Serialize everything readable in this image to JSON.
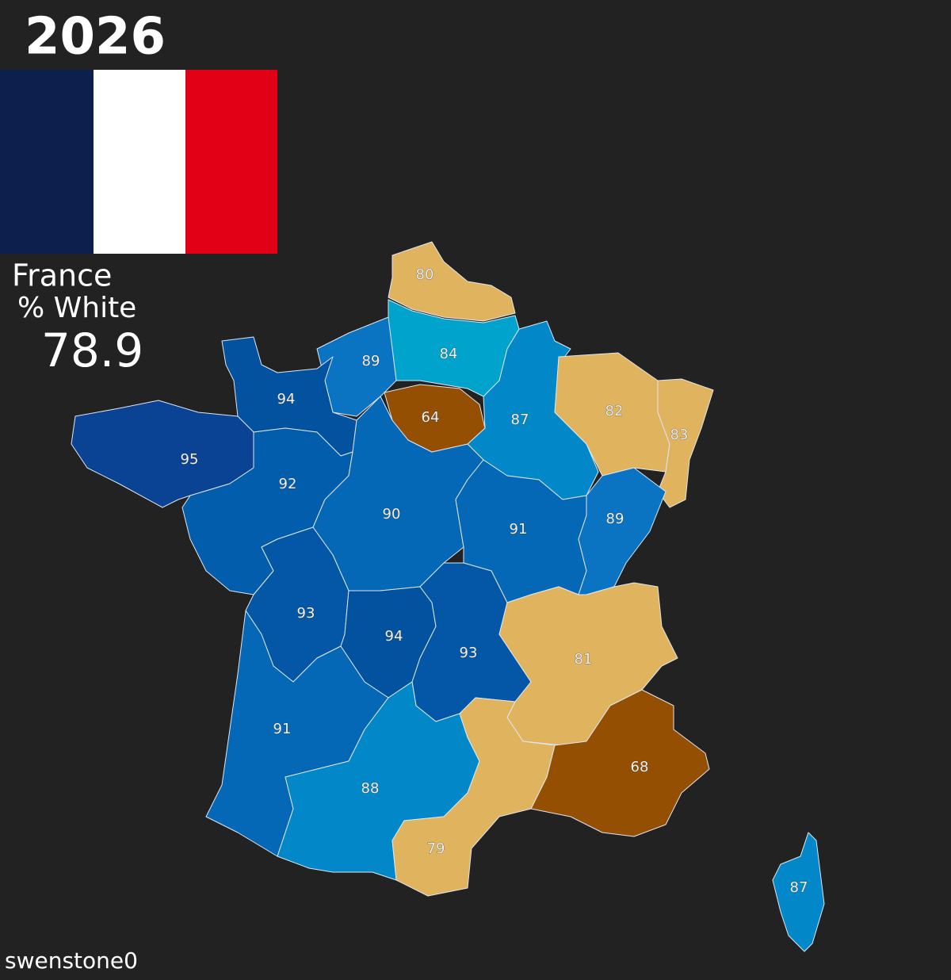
{
  "year": "2026",
  "country": "France",
  "metric": "% White",
  "national_value": 78.9,
  "credit": "swenstone0",
  "regions": [
    {
      "value": 80,
      "color": "#e0b45e"
    },
    {
      "value": 84,
      "color": "#00a3cc"
    },
    {
      "value": 89,
      "color": "#0a73c2"
    },
    {
      "value": 64,
      "color": "#944f02"
    },
    {
      "value": 87,
      "color": "#0288c9"
    },
    {
      "value": 82,
      "color": "#e0b45e"
    },
    {
      "value": 83,
      "color": "#e0b45e"
    },
    {
      "value": 94,
      "color": "#0352a0"
    },
    {
      "value": 95,
      "color": "#0a4394"
    },
    {
      "value": 92,
      "color": "#035dad"
    },
    {
      "value": 90,
      "color": "#0468b6"
    },
    {
      "value": 91,
      "color": "#0468b6"
    },
    {
      "value": 89,
      "color": "#0a73c2"
    },
    {
      "value": 93,
      "color": "#0357a6"
    },
    {
      "value": 94,
      "color": "#0352a0"
    },
    {
      "value": 93,
      "color": "#0357a6"
    },
    {
      "value": 81,
      "color": "#e0b45e"
    },
    {
      "value": 68,
      "color": "#944f02"
    },
    {
      "value": 91,
      "color": "#0468b6"
    },
    {
      "value": 88,
      "color": "#0288c9"
    },
    {
      "value": 79,
      "color": "#e0b45e"
    },
    {
      "value": 87,
      "color": "#0288c9"
    }
  ]
}
